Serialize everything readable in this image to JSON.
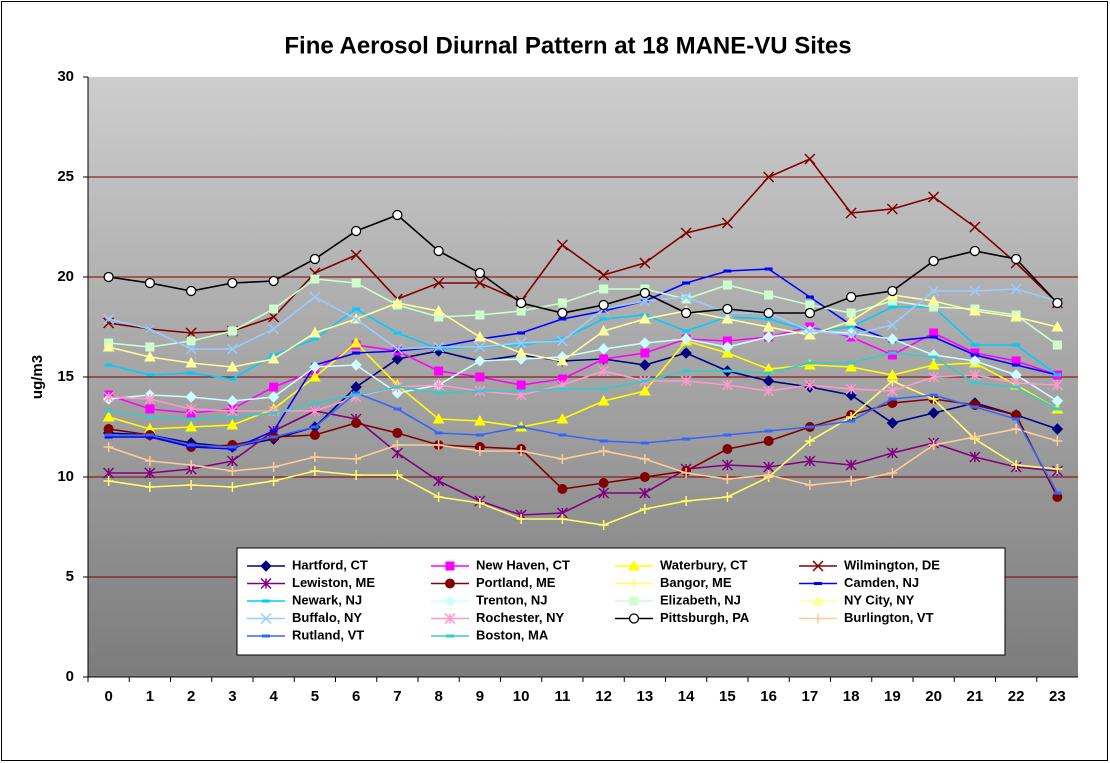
{
  "chart_data": {
    "type": "line",
    "title": "Fine Aerosol Diurnal Pattern at 18 MANE-VU Sites",
    "y_label": "ug/m3",
    "categories": [
      0,
      1,
      2,
      3,
      4,
      5,
      6,
      7,
      8,
      9,
      10,
      11,
      12,
      13,
      14,
      15,
      16,
      17,
      18,
      19,
      20,
      21,
      22,
      23
    ],
    "ylim": [
      0,
      30
    ],
    "yticks": [
      0,
      5,
      10,
      15,
      20,
      25,
      30
    ],
    "grid": true,
    "grid_color": "#800000",
    "series": [
      {
        "name": "Hartford, CT",
        "color": "#000080",
        "marker": "diamond",
        "values": [
          12.2,
          12.1,
          11.7,
          11.5,
          11.9,
          12.5,
          14.5,
          15.9,
          16.3,
          15.8,
          16.1,
          15.8,
          15.9,
          15.6,
          16.2,
          15.3,
          14.8,
          14.5,
          14.1,
          12.7,
          13.2,
          13.7,
          13.1,
          12.4
        ]
      },
      {
        "name": "New Haven, CT",
        "color": "#ff00ff",
        "marker": "square",
        "values": [
          14.1,
          13.4,
          13.2,
          13.4,
          14.5,
          15.3,
          16.6,
          16.3,
          15.3,
          15.0,
          14.6,
          14.9,
          15.9,
          16.2,
          16.9,
          16.8,
          17.0,
          17.5,
          17.0,
          16.1,
          17.2,
          16.2,
          15.8,
          15.1
        ]
      },
      {
        "name": "Waterbury, CT",
        "color": "#ffff00",
        "marker": "triangle",
        "values": [
          13.0,
          12.4,
          12.5,
          12.6,
          13.4,
          15.0,
          16.7,
          14.6,
          12.9,
          12.8,
          12.5,
          12.9,
          13.8,
          14.3,
          16.8,
          16.2,
          15.4,
          15.6,
          15.5,
          15.1,
          15.6,
          15.7,
          14.6,
          13.4
        ]
      },
      {
        "name": "Wilmington, DE",
        "color": "#800000",
        "marker": "x",
        "values": [
          17.7,
          17.4,
          17.2,
          17.3,
          18.0,
          20.2,
          21.1,
          18.9,
          19.7,
          19.7,
          18.8,
          21.6,
          20.1,
          20.7,
          22.2,
          22.7,
          25.0,
          25.9,
          23.2,
          23.4,
          24.0,
          22.5,
          20.7,
          18.7
        ]
      },
      {
        "name": "Lewiston, ME",
        "color": "#800080",
        "marker": "asterisk",
        "values": [
          10.2,
          10.2,
          10.4,
          10.8,
          12.3,
          13.3,
          12.9,
          11.2,
          9.8,
          8.8,
          8.1,
          8.2,
          9.2,
          9.2,
          10.4,
          10.6,
          10.5,
          10.8,
          10.6,
          11.2,
          11.7,
          11.0,
          10.5,
          10.3
        ]
      },
      {
        "name": "Portland, ME",
        "color": "#800000",
        "marker": "circle",
        "values": [
          12.4,
          12.1,
          11.5,
          11.6,
          12.0,
          12.1,
          12.7,
          12.2,
          11.6,
          11.5,
          11.4,
          9.4,
          9.7,
          10.0,
          10.3,
          11.4,
          11.8,
          12.5,
          13.1,
          13.7,
          13.9,
          13.6,
          13.1,
          9.0
        ]
      },
      {
        "name": "Bangor, ME",
        "color": "#ffff66",
        "marker": "plus",
        "values": [
          9.8,
          9.5,
          9.6,
          9.5,
          9.8,
          10.3,
          10.1,
          10.1,
          9.0,
          8.7,
          7.9,
          7.9,
          7.6,
          8.4,
          8.8,
          9.0,
          10.0,
          11.8,
          13.0,
          14.8,
          13.9,
          11.9,
          10.6,
          10.4
        ]
      },
      {
        "name": "Camden, NJ",
        "color": "#0000ff",
        "marker": "dash",
        "values": [
          12.0,
          12.0,
          11.5,
          11.4,
          12.3,
          15.6,
          16.2,
          16.3,
          16.5,
          16.9,
          17.2,
          17.9,
          18.3,
          18.8,
          19.7,
          20.3,
          20.4,
          19.0,
          17.6,
          16.8,
          17.0,
          16.1,
          15.6,
          15.1
        ]
      },
      {
        "name": "Newark, NJ",
        "color": "#00ccff",
        "marker": "dash",
        "values": [
          15.6,
          15.1,
          15.2,
          14.9,
          16.1,
          16.9,
          18.4,
          17.2,
          16.4,
          16.5,
          16.6,
          16.9,
          17.9,
          18.1,
          17.3,
          18.0,
          17.9,
          17.3,
          17.5,
          18.5,
          18.5,
          16.6,
          16.6,
          15.1
        ]
      },
      {
        "name": "Trenton, NJ",
        "color": "#ccffff",
        "marker": "diamond",
        "values": [
          13.9,
          14.1,
          14.0,
          13.8,
          14.0,
          15.5,
          15.6,
          14.2,
          14.6,
          15.8,
          15.9,
          16.0,
          16.4,
          16.7,
          16.9,
          16.5,
          17.0,
          17.3,
          17.2,
          16.9,
          16.1,
          15.8,
          15.1,
          13.8
        ]
      },
      {
        "name": "Elizabeth, NJ",
        "color": "#ccffcc",
        "marker": "square",
        "values": [
          16.7,
          16.5,
          16.8,
          17.3,
          18.4,
          19.9,
          19.7,
          18.6,
          18.0,
          18.1,
          18.3,
          18.7,
          19.4,
          19.4,
          18.9,
          19.6,
          19.1,
          18.6,
          18.2,
          18.8,
          18.5,
          18.4,
          18.1,
          16.6
        ]
      },
      {
        "name": "NY City, NY",
        "color": "#ffff99",
        "marker": "triangle",
        "values": [
          16.5,
          16.0,
          15.7,
          15.5,
          15.9,
          17.2,
          17.9,
          18.7,
          18.3,
          17.0,
          16.2,
          15.8,
          17.3,
          17.9,
          18.3,
          17.9,
          17.5,
          17.1,
          17.8,
          19.1,
          18.8,
          18.3,
          18.0,
          17.5
        ]
      },
      {
        "name": "Buffalo, NY",
        "color": "#99ccff",
        "marker": "x",
        "values": [
          17.9,
          17.4,
          16.4,
          16.4,
          17.4,
          19.0,
          17.9,
          16.4,
          16.5,
          16.5,
          16.7,
          16.8,
          18.4,
          18.8,
          19.0,
          18.2,
          18.2,
          17.3,
          17.1,
          17.6,
          19.3,
          19.3,
          19.4,
          18.8
        ]
      },
      {
        "name": "Rochester, NY",
        "color": "#ff99cc",
        "marker": "asterisk",
        "values": [
          14.0,
          13.9,
          13.4,
          13.3,
          13.3,
          13.3,
          14.0,
          14.5,
          14.6,
          14.3,
          14.1,
          14.6,
          15.3,
          14.8,
          14.8,
          14.6,
          14.3,
          14.6,
          14.4,
          14.3,
          15.0,
          15.1,
          14.7,
          14.6
        ]
      },
      {
        "name": "Pittsburgh, PA",
        "color": "#000000",
        "marker": "open-circle",
        "values": [
          20.0,
          19.7,
          19.3,
          19.7,
          19.8,
          20.9,
          22.3,
          23.1,
          21.3,
          20.2,
          18.7,
          18.2,
          18.6,
          19.2,
          18.2,
          18.4,
          18.2,
          18.2,
          19.0,
          19.3,
          20.8,
          21.3,
          20.9,
          18.7
        ]
      },
      {
        "name": "Burlington, VT",
        "color": "#ffcc99",
        "marker": "plus",
        "values": [
          11.5,
          10.8,
          10.6,
          10.3,
          10.5,
          11.0,
          10.9,
          11.6,
          11.6,
          11.3,
          11.3,
          10.9,
          11.3,
          10.9,
          10.2,
          9.9,
          10.1,
          9.6,
          9.8,
          10.2,
          11.6,
          12.0,
          12.4,
          11.8
        ]
      },
      {
        "name": "Rutland, VT",
        "color": "#3366ff",
        "marker": "dash",
        "values": [
          12.1,
          12.1,
          11.6,
          11.5,
          12.0,
          12.5,
          14.2,
          13.4,
          12.2,
          12.1,
          12.5,
          12.1,
          11.8,
          11.7,
          11.9,
          12.1,
          12.3,
          12.5,
          12.8,
          13.9,
          14.1,
          13.5,
          12.9,
          9.2
        ]
      },
      {
        "name": "Boston, MA",
        "color": "#33cccc",
        "marker": "dash",
        "values": [
          13.3,
          13.0,
          12.9,
          13.0,
          13.2,
          13.7,
          14.1,
          14.5,
          14.2,
          14.3,
          14.3,
          14.4,
          14.4,
          14.8,
          15.3,
          15.3,
          15.2,
          15.7,
          15.7,
          16.2,
          16.0,
          14.7,
          14.5,
          13.4
        ]
      }
    ]
  }
}
